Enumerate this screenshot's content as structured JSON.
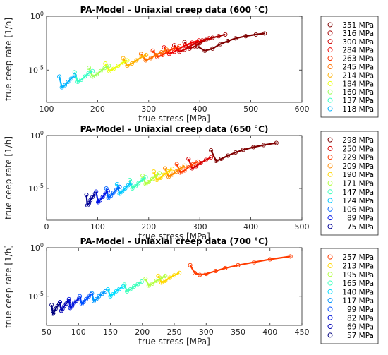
{
  "chart_data": [
    {
      "type": "scatter",
      "title": "PA-Model - Uniaxial creep data (600 °C)",
      "xlabel": "true stress [MPa]",
      "ylabel": "true ceep rate [1/h]",
      "xlim": [
        100,
        600
      ],
      "ylim": [
        -8,
        0
      ],
      "yscale": "log",
      "xticks": [
        "100",
        "200",
        "300",
        "400",
        "500",
        "600"
      ],
      "yticks": [
        "10^0",
        "10^-5"
      ],
      "legend": "outside-right",
      "series": [
        {
          "name": "351 MPa",
          "color": "#7f0000",
          "x": [
            395,
            410,
            425,
            440,
            455,
            470,
            490,
            510,
            527
          ],
          "y": [
            -2.8,
            -3.2,
            -3.0,
            -2.6,
            -2.3,
            -2.05,
            -1.85,
            -1.7,
            -1.6
          ]
        },
        {
          "name": "316 MPa",
          "color": "#a50000",
          "x": [
            370,
            380,
            390,
            400,
            412,
            425,
            437,
            450
          ],
          "y": [
            -2.4,
            -3.0,
            -2.8,
            -2.5,
            -2.2,
            -2.0,
            -1.85,
            -1.7
          ]
        },
        {
          "name": "300 MPa",
          "color": "#cc0000",
          "x": [
            350,
            360,
            370,
            380,
            392,
            405,
            418
          ],
          "y": [
            -2.7,
            -3.3,
            -3.1,
            -2.8,
            -2.5,
            -2.25,
            -2.05
          ]
        },
        {
          "name": "284 MPa",
          "color": "#f00000",
          "x": [
            330,
            340,
            350,
            360,
            372,
            385,
            398
          ],
          "y": [
            -2.9,
            -3.5,
            -3.3,
            -3.0,
            -2.7,
            -2.45,
            -2.25
          ]
        },
        {
          "name": "263 MPa",
          "color": "#ff3300",
          "x": [
            308,
            317,
            327,
            337,
            348,
            360
          ],
          "y": [
            -3.2,
            -3.8,
            -3.6,
            -3.3,
            -3.0,
            -2.8
          ]
        },
        {
          "name": "245 MPa",
          "color": "#ff7000",
          "x": [
            285,
            294,
            304,
            314,
            325,
            335
          ],
          "y": [
            -3.5,
            -4.1,
            -3.9,
            -3.6,
            -3.35,
            -3.1
          ]
        },
        {
          "name": "214 MPa",
          "color": "#ffb000",
          "x": [
            250,
            258,
            267,
            276,
            286,
            295
          ],
          "y": [
            -3.9,
            -4.6,
            -4.4,
            -4.1,
            -3.8,
            -3.6
          ]
        },
        {
          "name": "184 MPa",
          "color": "#eaff0d",
          "x": [
            215,
            223,
            231,
            240,
            249,
            258
          ],
          "y": [
            -4.4,
            -5.1,
            -4.9,
            -4.6,
            -4.3,
            -4.1
          ]
        },
        {
          "name": "160 MPa",
          "color": "#9dff5a",
          "x": [
            183,
            190,
            198,
            206,
            214,
            222
          ],
          "y": [
            -4.8,
            -5.6,
            -5.4,
            -5.1,
            -4.8,
            -4.6
          ]
        },
        {
          "name": "137 MPa",
          "color": "#34ffc4",
          "x": [
            155,
            161,
            168,
            175,
            182,
            190
          ],
          "y": [
            -5.2,
            -6.1,
            -5.9,
            -5.6,
            -5.3,
            -5.1
          ]
        },
        {
          "name": "118 MPa",
          "color": "#00b4ff",
          "x": [
            125,
            130,
            136,
            142,
            148,
            155
          ],
          "y": [
            -5.6,
            -6.6,
            -6.4,
            -6.1,
            -5.8,
            -5.5
          ]
        }
      ]
    },
    {
      "type": "scatter",
      "title": "PA-Model - Uniaxial creep data (650 °C)",
      "xlabel": "true stress [MPa]",
      "ylabel": "true ceep rate [1/h]",
      "xlim": [
        0,
        500
      ],
      "ylim": [
        -8,
        0
      ],
      "yscale": "log",
      "xticks": [
        "0",
        "100",
        "200",
        "300",
        "400",
        "500"
      ],
      "yticks": [
        "10^0",
        "10^-5"
      ],
      "legend": "outside-right",
      "series": [
        {
          "name": "298 MPa",
          "color": "#7f0000",
          "x": [
            322,
            332,
            342,
            355,
            370,
            385,
            405,
            425,
            450
          ],
          "y": [
            -1.4,
            -2.4,
            -2.2,
            -1.9,
            -1.6,
            -1.35,
            -1.1,
            -0.9,
            -0.7
          ]
        },
        {
          "name": "250 MPa",
          "color": "#d80000",
          "x": [
            278,
            285,
            293,
            302,
            312,
            322
          ],
          "y": [
            -2.2,
            -3.1,
            -2.9,
            -2.6,
            -2.3,
            -2.05
          ]
        },
        {
          "name": "229 MPa",
          "color": "#ff3c00",
          "x": [
            255,
            262,
            270,
            278,
            287,
            296
          ],
          "y": [
            -2.7,
            -3.5,
            -3.3,
            -3.0,
            -2.7,
            -2.45
          ]
        },
        {
          "name": "209 MPa",
          "color": "#ff8c00",
          "x": [
            232,
            239,
            246,
            254,
            262,
            270
          ],
          "y": [
            -3.1,
            -3.9,
            -3.7,
            -3.4,
            -3.1,
            -2.85
          ]
        },
        {
          "name": "190 MPa",
          "color": "#ffd700",
          "x": [
            210,
            216,
            223,
            230,
            238,
            246
          ],
          "y": [
            -3.4,
            -4.2,
            -4.0,
            -3.7,
            -3.4,
            -3.15
          ]
        },
        {
          "name": "171 MPa",
          "color": "#b4ff43",
          "x": [
            188,
            194,
            200,
            207,
            214,
            221
          ],
          "y": [
            -3.8,
            -4.6,
            -4.4,
            -4.1,
            -3.8,
            -3.55
          ]
        },
        {
          "name": "147 MPa",
          "color": "#3cffbb",
          "x": [
            163,
            168,
            174,
            180,
            187,
            194
          ],
          "y": [
            -4.2,
            -5.0,
            -4.8,
            -4.5,
            -4.2,
            -3.95
          ]
        },
        {
          "name": "124 MPa",
          "color": "#00c8ff",
          "x": [
            138,
            143,
            148,
            154,
            160,
            166
          ],
          "y": [
            -4.6,
            -5.5,
            -5.3,
            -5.0,
            -4.7,
            -4.45
          ]
        },
        {
          "name": "106 MPa",
          "color": "#0064ff",
          "x": [
            117,
            121,
            126,
            131,
            137,
            143
          ],
          "y": [
            -5.0,
            -5.9,
            -5.7,
            -5.4,
            -5.1,
            -4.85
          ]
        },
        {
          "name": "89 MPa",
          "color": "#0014e6",
          "x": [
            97,
            101,
            105,
            110,
            115,
            120
          ],
          "y": [
            -5.3,
            -6.3,
            -6.1,
            -5.8,
            -5.5,
            -5.25
          ]
        },
        {
          "name": "75 MPa",
          "color": "#000096",
          "x": [
            78,
            80,
            83,
            86,
            90,
            95
          ],
          "y": [
            -5.6,
            -6.6,
            -6.4,
            -6.1,
            -5.8,
            -5.5
          ]
        }
      ]
    },
    {
      "type": "scatter",
      "title": "PA-Model - Uniaxial creep data (700 °C)",
      "xlabel": "true stress [MPa]",
      "ylabel": "true ceep rate [1/h]",
      "xlim": [
        50,
        450
      ],
      "ylim": [
        -8,
        0
      ],
      "yscale": "log",
      "xticks": [
        "50",
        "100",
        "150",
        "200",
        "250",
        "300",
        "350",
        "400",
        "450"
      ],
      "yticks": [
        "10^0",
        "10^-5"
      ],
      "legend": "outside-right",
      "series": [
        {
          "name": "257 MPa",
          "color": "#ff3c00",
          "x": [
            275,
            282,
            290,
            300,
            315,
            330,
            350,
            375,
            400,
            432
          ],
          "y": [
            -1.8,
            -2.6,
            -2.8,
            -2.7,
            -2.4,
            -2.1,
            -1.8,
            -1.5,
            -1.2,
            -0.9
          ]
        },
        {
          "name": "213 MPa",
          "color": "#ffd700",
          "x": [
            225,
            230,
            236,
            243,
            250,
            258
          ],
          "y": [
            -2.9,
            -3.6,
            -3.4,
            -3.1,
            -2.85,
            -2.6
          ]
        },
        {
          "name": "195 MPa",
          "color": "#b4ff43",
          "x": [
            205,
            210,
            216,
            222,
            229,
            236
          ],
          "y": [
            -3.2,
            -3.9,
            -3.7,
            -3.4,
            -3.15,
            -2.9
          ]
        },
        {
          "name": "165 MPa",
          "color": "#3cffbb",
          "x": [
            172,
            176,
            181,
            187,
            193,
            199
          ],
          "y": [
            -3.8,
            -4.5,
            -4.3,
            -4.0,
            -3.75,
            -3.5
          ]
        },
        {
          "name": "140 MPa",
          "color": "#00dcff",
          "x": [
            146,
            150,
            154,
            159,
            164,
            170
          ],
          "y": [
            -4.3,
            -5.0,
            -4.8,
            -4.5,
            -4.25,
            -4.0
          ]
        },
        {
          "name": "117 MPa",
          "color": "#0096ff",
          "x": [
            121,
            124,
            128,
            132,
            137,
            142
          ],
          "y": [
            -4.7,
            -5.5,
            -5.3,
            -5.0,
            -4.75,
            -4.5
          ]
        },
        {
          "name": "99 MPa",
          "color": "#0050ff",
          "x": [
            102,
            105,
            108,
            112,
            116,
            120
          ],
          "y": [
            -5.0,
            -5.8,
            -5.6,
            -5.3,
            -5.05,
            -4.8
          ]
        },
        {
          "name": "82 MPa",
          "color": "#0014dc",
          "x": [
            85,
            87,
            90,
            93,
            97,
            101
          ],
          "y": [
            -5.3,
            -6.2,
            -6.0,
            -5.7,
            -5.45,
            -5.2
          ]
        },
        {
          "name": "69 MPa",
          "color": "#0000b4",
          "x": [
            71,
            73,
            75,
            78,
            81,
            85
          ],
          "y": [
            -5.6,
            -6.5,
            -6.3,
            -6.0,
            -5.75,
            -5.5
          ]
        },
        {
          "name": "57 MPa",
          "color": "#00007f",
          "x": [
            58,
            60,
            62,
            64,
            67,
            70
          ],
          "y": [
            -5.9,
            -6.8,
            -6.6,
            -6.3,
            -6.05,
            -5.8
          ]
        }
      ]
    }
  ]
}
